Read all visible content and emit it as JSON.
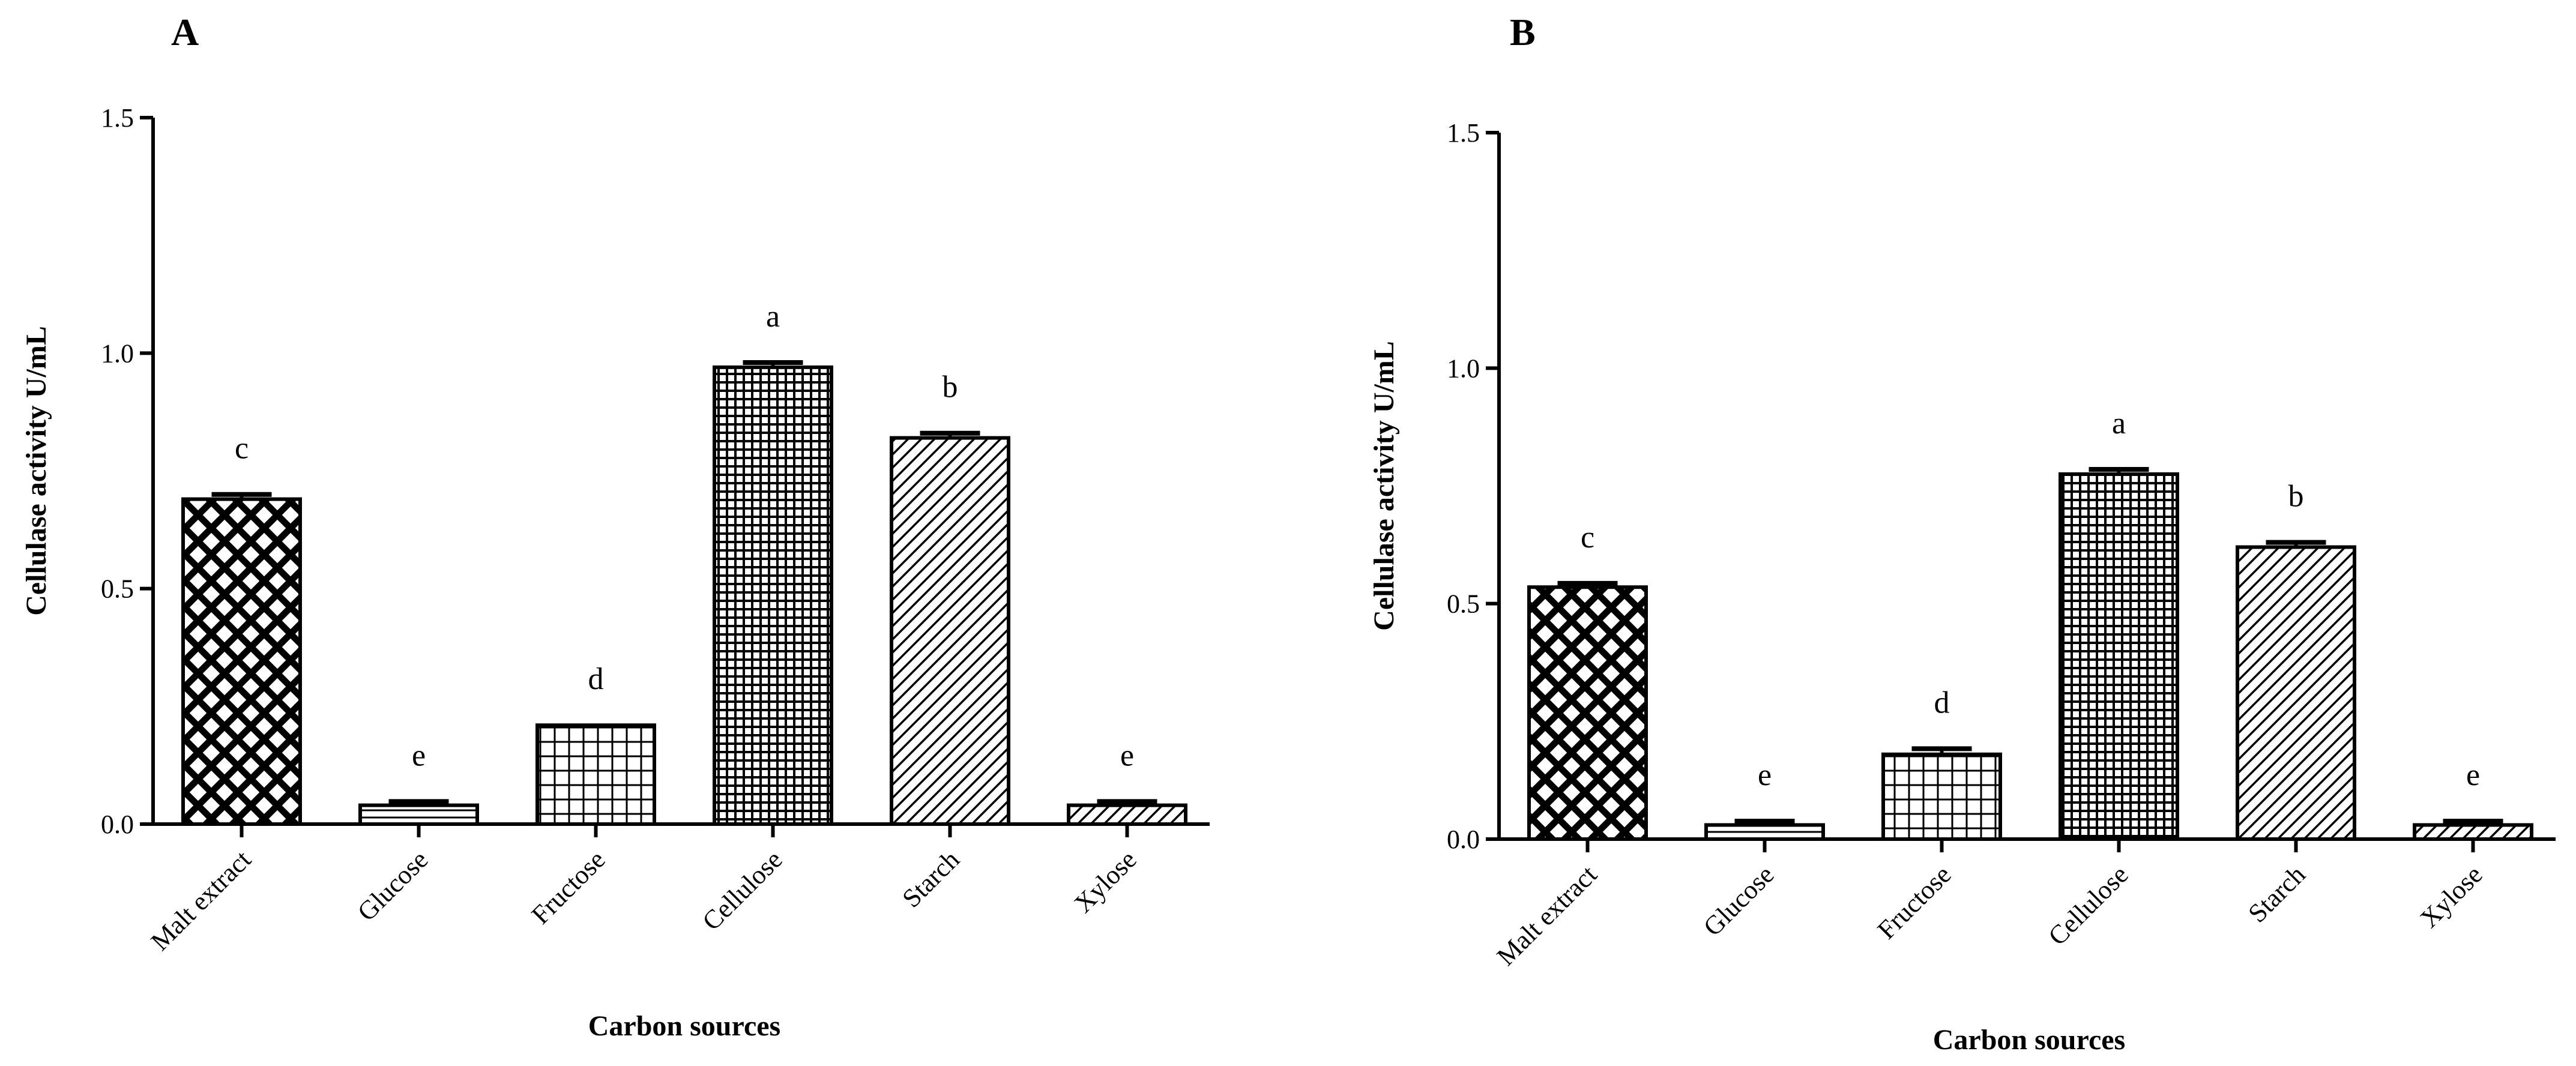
{
  "chart_data": [
    {
      "panel": "A",
      "type": "bar",
      "categories": [
        "Malt extract",
        "Glucose",
        "Fructose",
        "Cellulose",
        "Starch",
        "Xylose"
      ],
      "values": [
        0.69,
        0.04,
        0.21,
        0.97,
        0.82,
        0.04
      ],
      "errors": [
        0.01,
        0.008,
        0.0,
        0.01,
        0.01,
        0.008
      ],
      "significance": [
        "c",
        "e",
        "d",
        "a",
        "b",
        "e"
      ],
      "patterns": [
        "diamond-hatch",
        "horizontal-lines",
        "grid",
        "fine-grid",
        "diagonal-lines",
        "diagonal-lines"
      ],
      "xlabel": "Carbon sources",
      "ylabel": "Cellulase activity U/mL",
      "ylim": [
        0,
        1.5
      ],
      "yticks": [
        "0.0",
        "0.5",
        "1.0",
        "1.5"
      ]
    },
    {
      "panel": "B",
      "type": "bar",
      "categories": [
        "Malt extract",
        "Glucose",
        "Fructose",
        "Cellulose",
        "Starch",
        "Xylose"
      ],
      "values": [
        0.535,
        0.03,
        0.18,
        0.775,
        0.62,
        0.03
      ],
      "errors": [
        0.008,
        0.008,
        0.012,
        0.01,
        0.01,
        0.008
      ],
      "significance": [
        "c",
        "e",
        "d",
        "a",
        "b",
        "e"
      ],
      "patterns": [
        "diamond-hatch",
        "horizontal-lines",
        "grid",
        "fine-grid",
        "diagonal-lines",
        "diagonal-lines"
      ],
      "xlabel": "Carbon sources",
      "ylabel": "Cellulase activity U/mL",
      "ylim": [
        0,
        1.5
      ],
      "yticks": [
        "0.0",
        "0.5",
        "1.0",
        "1.5"
      ]
    }
  ]
}
